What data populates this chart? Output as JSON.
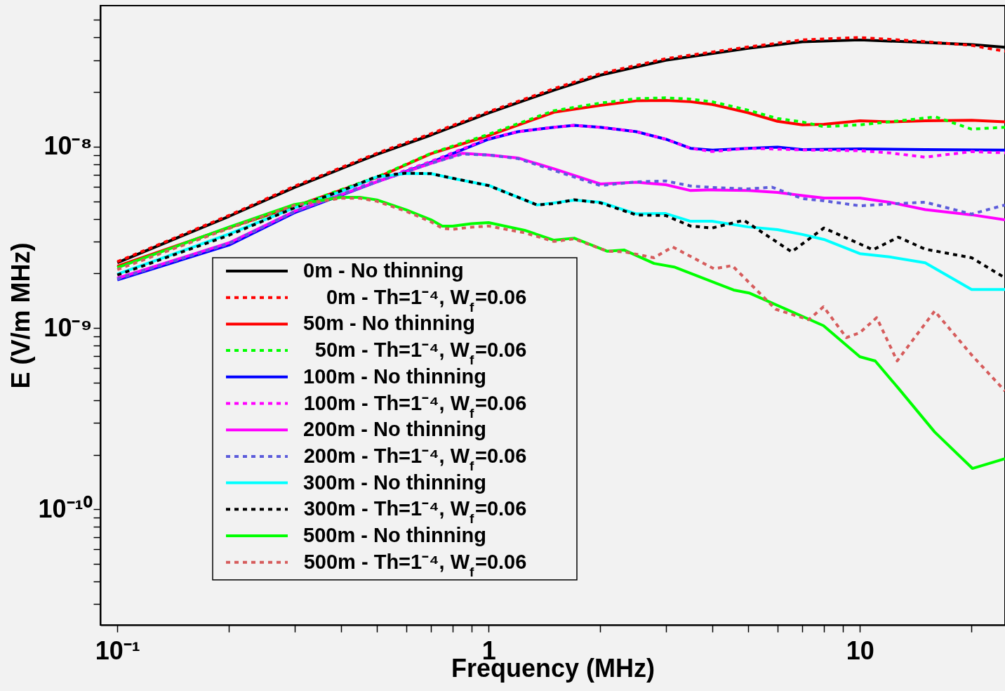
{
  "chart_data": {
    "type": "line",
    "xlabel": "Frequency (MHz)",
    "ylabel": "E (V/m MHz)",
    "log": "xy",
    "grid": false,
    "marker": "none",
    "legend": "bottom left",
    "xlim": [
      0.09,
      24.6
    ],
    "ylim": [
      2.3e-11,
      6e-08
    ],
    "xticks": [
      {
        "value": 0.1,
        "label": "10⁻¹"
      },
      {
        "value": 0.2,
        "label": null
      },
      {
        "value": 0.3,
        "label": null
      },
      {
        "value": 0.4,
        "label": null
      },
      {
        "value": 0.5,
        "label": null
      },
      {
        "value": 0.6,
        "label": null
      },
      {
        "value": 0.7,
        "label": null
      },
      {
        "value": 0.8,
        "label": null
      },
      {
        "value": 0.9,
        "label": null
      },
      1,
      {
        "value": 2,
        "label": null
      },
      {
        "value": 3,
        "label": null
      },
      {
        "value": 4,
        "label": null
      },
      {
        "value": 5,
        "label": null
      },
      {
        "value": 6,
        "label": null
      },
      {
        "value": 7,
        "label": null
      },
      {
        "value": 8,
        "label": null
      },
      {
        "value": 9,
        "label": null
      },
      10,
      {
        "value": 20,
        "label": null
      }
    ],
    "yticks": [
      {
        "value": 3e-11,
        "label": null
      },
      {
        "value": 4e-11,
        "label": null
      },
      {
        "value": 5e-11,
        "label": null
      },
      {
        "value": 6e-11,
        "label": null
      },
      {
        "value": 7e-11,
        "label": null
      },
      {
        "value": 8e-11,
        "label": null
      },
      {
        "value": 9e-11,
        "label": null
      },
      {
        "value": 1e-10,
        "label": "10⁻¹⁰"
      },
      {
        "value": 2e-10,
        "label": null
      },
      {
        "value": 3e-10,
        "label": null
      },
      {
        "value": 4e-10,
        "label": null
      },
      {
        "value": 5e-10,
        "label": null
      },
      {
        "value": 6e-10,
        "label": null
      },
      {
        "value": 7e-10,
        "label": null
      },
      {
        "value": 8e-10,
        "label": null
      },
      {
        "value": 9e-10,
        "label": null
      },
      {
        "value": 1e-09,
        "label": "10⁻⁹"
      },
      {
        "value": 2e-09,
        "label": null
      },
      {
        "value": 3e-09,
        "label": null
      },
      {
        "value": 4e-09,
        "label": null
      },
      {
        "value": 5e-09,
        "label": null
      },
      {
        "value": 6e-09,
        "label": null
      },
      {
        "value": 7e-09,
        "label": null
      },
      {
        "value": 8e-09,
        "label": null
      },
      {
        "value": 9e-09,
        "label": null
      },
      {
        "value": 1e-08,
        "label": "10⁻⁸"
      },
      {
        "value": 2e-08,
        "label": null
      },
      {
        "value": 3e-08,
        "label": null
      },
      {
        "value": 4e-08,
        "label": null
      },
      {
        "value": 5e-08,
        "label": null
      }
    ],
    "series": [
      {
        "name": "0m - No thinning",
        "color": "#000000",
        "line_style": "solid",
        "x": [
          0.1,
          0.2,
          0.3,
          0.5,
          0.7,
          1,
          1.5,
          2,
          3,
          5,
          7,
          10,
          15,
          20,
          24.6
        ],
        "values": [
          2.29e-09,
          4.13e-09,
          5.96e-09,
          9.07e-09,
          1.16e-08,
          1.535e-08,
          2.05e-08,
          2.48e-08,
          3e-08,
          3.49e-08,
          3.79e-08,
          3.88e-08,
          3.76e-08,
          3.66e-08,
          3.54e-08
        ]
      },
      {
        "name": "0m - Th=1⁻⁴, W$_{f}$=0.06",
        "color": "#ff0000",
        "line_style": "dotted",
        "x": [
          0.1,
          0.2,
          0.3,
          0.5,
          0.7,
          1,
          1.5,
          2,
          3,
          5,
          7,
          10,
          15,
          20,
          24.6
        ],
        "values": [
          2.32e-09,
          4.18e-09,
          6.05e-09,
          9.2e-09,
          1.18e-08,
          1.56e-08,
          2.09e-08,
          2.53e-08,
          3.06e-08,
          3.55e-08,
          3.88e-08,
          4e-08,
          3.8e-08,
          3.62e-08,
          3.36e-08
        ]
      },
      {
        "name": "50m - No thinning",
        "color": "#ff0000",
        "line_style": "solid",
        "x": [
          0.1,
          0.2,
          0.3,
          0.5,
          0.7,
          1,
          1.5,
          2,
          2.5,
          3,
          3.5,
          4,
          5,
          6,
          7,
          8,
          10,
          12,
          15,
          20,
          24.6
        ],
        "values": [
          2.19e-09,
          3.58e-09,
          4.69e-09,
          6.75e-09,
          9.15e-09,
          1.15e-08,
          1.55e-08,
          1.69e-08,
          1.79e-08,
          1.8e-08,
          1.77e-08,
          1.71e-08,
          1.54e-08,
          1.38e-08,
          1.32e-08,
          1.33e-08,
          1.39e-08,
          1.37e-08,
          1.39e-08,
          1.4e-08,
          1.37e-08
        ]
      },
      {
        "name": "50m - Th=1⁻⁴, W$_{f}$=0.06",
        "color": "#00ff00",
        "line_style": "dotted",
        "x": [
          0.1,
          0.2,
          0.3,
          0.5,
          0.7,
          1,
          1.5,
          2,
          2.5,
          3,
          3.5,
          4,
          5,
          6,
          7,
          8,
          10,
          12,
          16,
          20,
          24.6
        ],
        "values": [
          2.15e-09,
          3.55e-09,
          4.69e-09,
          6.8e-09,
          9.2e-09,
          1.17e-08,
          1.58e-08,
          1.74e-08,
          1.84e-08,
          1.86e-08,
          1.83e-08,
          1.77e-08,
          1.59e-08,
          1.43e-08,
          1.37e-08,
          1.29e-08,
          1.32e-08,
          1.37e-08,
          1.46e-08,
          1.25e-08,
          1.28e-08
        ]
      },
      {
        "name": "100m - No thinning",
        "color": "#0000ff",
        "line_style": "solid",
        "x": [
          0.1,
          0.2,
          0.3,
          0.5,
          0.7,
          1,
          1.2,
          1.5,
          1.7,
          2,
          2.5,
          3,
          3.5,
          4,
          5,
          6,
          7,
          10,
          15,
          24.6
        ],
        "values": [
          1.84e-09,
          2.87e-09,
          4.32e-09,
          6.4e-09,
          8.2e-09,
          1.1e-08,
          1.21e-08,
          1.28e-08,
          1.31e-08,
          1.28e-08,
          1.21e-08,
          1.1e-08,
          9.8e-09,
          9.57e-09,
          9.8e-09,
          9.95e-09,
          9.65e-09,
          9.73e-09,
          9.65e-09,
          9.57e-09
        ]
      },
      {
        "name": "100m - Th=1⁻⁴, W$_{f}$=0.06",
        "color": "#ff00ff",
        "line_style": "dotted",
        "x": [
          0.1,
          0.2,
          0.3,
          0.5,
          0.7,
          1,
          1.2,
          1.5,
          1.7,
          2,
          2.5,
          3,
          3.5,
          4,
          5,
          7,
          10,
          12,
          15,
          20,
          24.6
        ],
        "values": [
          1.88e-09,
          2.92e-09,
          4.38e-09,
          6.5e-09,
          8.3e-09,
          1.11e-08,
          1.21e-08,
          1.28e-08,
          1.31e-08,
          1.28e-08,
          1.21e-08,
          1.1e-08,
          9.8e-09,
          9.4e-09,
          9.8e-09,
          9.6e-09,
          9.5e-09,
          9.25e-09,
          8.75e-09,
          9.4e-09,
          9.25e-09
        ]
      },
      {
        "name": "200m - No thinning",
        "color": "#ff00ff",
        "line_style": "solid",
        "x": [
          0.1,
          0.2,
          0.3,
          0.5,
          0.7,
          0.85,
          1,
          1.2,
          1.5,
          2,
          2.5,
          3,
          3.5,
          4,
          5,
          6,
          7,
          8,
          10,
          12,
          15,
          20,
          24.6
        ],
        "values": [
          1.88e-09,
          2.95e-09,
          4.4e-09,
          6.4e-09,
          8.1e-09,
          9.2e-09,
          9e-09,
          8.67e-09,
          7.55e-09,
          6.23e-09,
          6.37e-09,
          6.17e-09,
          5.73e-09,
          5.78e-09,
          5.73e-09,
          5.6e-09,
          5.37e-09,
          5.21e-09,
          5.21e-09,
          4.94e-09,
          4.5e-09,
          4.21e-09,
          3.95e-09
        ]
      },
      {
        "name": "200m - Th=1⁻⁴, W$_{f}$=0.06",
        "color": "#5c5cdb",
        "line_style": "dotted",
        "x": [
          0.1,
          0.2,
          0.3,
          0.5,
          0.7,
          0.85,
          1,
          1.2,
          1.5,
          2,
          2.5,
          3,
          3.5,
          4,
          5,
          5.8,
          7,
          8,
          10,
          12,
          15,
          20,
          24.6
        ],
        "values": [
          1.86e-09,
          2.93e-09,
          4.38e-09,
          6.4e-09,
          8.1e-09,
          9.1e-09,
          9e-09,
          8.6e-09,
          7.4e-09,
          6.1e-09,
          6.4e-09,
          6.47e-09,
          6.07e-09,
          5.96e-09,
          5.85e-09,
          5.98e-09,
          5.17e-09,
          5.03e-09,
          4.72e-09,
          4.83e-09,
          4.94e-09,
          4.25e-09,
          4.77e-09
        ]
      },
      {
        "name": "300m - No thinning",
        "color": "#00ffff",
        "line_style": "solid",
        "x": [
          0.1,
          0.2,
          0.3,
          0.4,
          0.5,
          0.6,
          0.7,
          0.8,
          1,
          1.2,
          1.35,
          1.5,
          1.7,
          2,
          2.5,
          3,
          3.5,
          4,
          5,
          6,
          7,
          8,
          10,
          12,
          15,
          20,
          24.6
        ],
        "values": [
          1.98e-09,
          3.3e-09,
          4.6e-09,
          5.65e-09,
          6.81e-09,
          7.12e-09,
          7.1e-09,
          6.69e-09,
          6.12e-09,
          5.26e-09,
          4.77e-09,
          4.9e-09,
          5.07e-09,
          4.94e-09,
          4.26e-09,
          4.28e-09,
          3.88e-09,
          3.88e-09,
          3.61e-09,
          3.49e-09,
          3.28e-09,
          3.08e-09,
          2.57e-09,
          2.47e-09,
          2.29e-09,
          1.63e-09,
          1.63e-09
        ]
      },
      {
        "name": "300m - Th=1⁻⁴, W$_{f}$=0.06",
        "color": "#000000",
        "line_style": "dotted",
        "x": [
          0.1,
          0.2,
          0.3,
          0.4,
          0.5,
          0.6,
          0.7,
          0.8,
          1,
          1.2,
          1.35,
          1.5,
          1.7,
          2,
          2.5,
          3,
          3.5,
          4,
          4.87,
          6.55,
          8,
          10.85,
          12.7,
          15,
          20,
          24.6
        ],
        "values": [
          1.96e-09,
          3.25e-09,
          4.6e-09,
          5.7e-09,
          6.85e-09,
          7.15e-09,
          7.1e-09,
          6.7e-09,
          6.1e-09,
          5.26e-09,
          4.77e-09,
          4.85e-09,
          5.1e-09,
          4.9e-09,
          4.2e-09,
          4.17e-09,
          3.65e-09,
          3.56e-09,
          3.93e-09,
          2.63e-09,
          3.56e-09,
          2.7e-09,
          3.17e-09,
          2.72e-09,
          2.44e-09,
          1.89e-09
        ]
      },
      {
        "name": "500m - No thinning",
        "color": "#00ff00",
        "line_style": "solid",
        "x": [
          0.1,
          0.2,
          0.3,
          0.4,
          0.45,
          0.5,
          0.6,
          0.7,
          0.75,
          0.8,
          0.9,
          1,
          1.25,
          1.5,
          1.7,
          2.09,
          2.32,
          2.79,
          3.16,
          4.57,
          5.03,
          7.98,
          10,
          11,
          12.7,
          15.9,
          20.1,
          24.6
        ],
        "values": [
          2.15e-09,
          3.6e-09,
          4.8e-09,
          5.26e-09,
          5.26e-09,
          5.09e-09,
          4.48e-09,
          3.95e-09,
          3.65e-09,
          3.65e-09,
          3.76e-09,
          3.81e-09,
          3.46e-09,
          3.05e-09,
          3.13e-09,
          2.65e-09,
          2.69e-09,
          2.27e-09,
          2.17e-09,
          1.62e-09,
          1.56e-09,
          1.03e-09,
          6.94e-10,
          6.58e-10,
          4.65e-10,
          2.67e-10,
          1.68e-10,
          1.9e-10
        ]
      },
      {
        "name": "500m - Th=1⁻⁴, W$_{f}$=0.06",
        "color": "#d65c5c",
        "line_style": "dotted",
        "x": [
          0.1,
          0.2,
          0.3,
          0.4,
          0.45,
          0.5,
          0.6,
          0.7,
          0.75,
          0.8,
          0.9,
          1,
          1.25,
          1.5,
          1.7,
          2.09,
          2.32,
          2.79,
          3.13,
          4.05,
          4.53,
          5.93,
          7.28,
          7.98,
          9.2,
          10,
          11.1,
          12.6,
          15.9,
          20,
          24.6
        ],
        "values": [
          2.1e-09,
          3.55e-09,
          4.75e-09,
          5.2e-09,
          5.2e-09,
          5e-09,
          4.4e-09,
          3.85e-09,
          3.55e-09,
          3.5e-09,
          3.6e-09,
          3.65e-09,
          3.35e-09,
          3e-09,
          3.1e-09,
          2.65e-09,
          2.63e-09,
          2.44e-09,
          2.8e-09,
          2.12e-09,
          2.21e-09,
          1.27e-09,
          1.11e-09,
          1.31e-09,
          8.85e-10,
          9.42e-10,
          1.14e-09,
          6.58e-10,
          1.24e-09,
          7.1e-10,
          4.49e-10
        ]
      }
    ]
  }
}
